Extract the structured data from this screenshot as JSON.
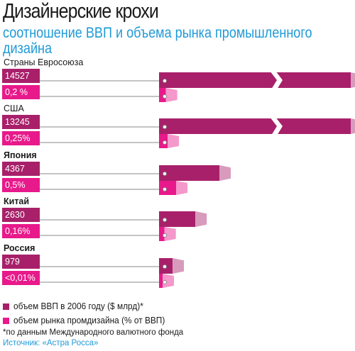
{
  "header": {
    "title": "Дизайнерские крохи",
    "subtitle": "соотношение ВВП и объема рынка промышленного дизайна"
  },
  "chart_data": {
    "type": "bar",
    "categories": [
      "Страны Евросоюза",
      "США",
      "Япония",
      "Китай",
      "Россия"
    ],
    "series": [
      {
        "name": "объем ВВП в 2006 году ($ млрд)*",
        "values": [
          14527,
          13245,
          4367,
          2630,
          979
        ],
        "labels": [
          "14527",
          "13245",
          "4367",
          "2630",
          "979"
        ],
        "color": "#a8206a",
        "broken_scale": [
          true,
          true,
          false,
          false,
          false
        ]
      },
      {
        "name": "объем рынка промдизайна (% от ВВП)",
        "values": [
          0.2,
          0.25,
          0.5,
          0.16,
          0.01
        ],
        "labels": [
          "0,2 %",
          "0,25%",
          "0,5%",
          "0,16%",
          "<0,01%"
        ],
        "color": "#e8198b"
      }
    ]
  },
  "legend": {
    "items": [
      {
        "label": "объем ВВП в 2006 году ($ млрд)*",
        "color": "#a8206a"
      },
      {
        "label": "объем рынка промдизайна (% от ВВП)",
        "color": "#e8198b"
      }
    ]
  },
  "footnote": "*по данным Международного валютного фонда",
  "source": "Источник: «Астра Росса»",
  "colors": {
    "gdp": "#a8206a",
    "design": "#e8198b",
    "accent": "#1f9ad8",
    "leader": "#888888"
  }
}
